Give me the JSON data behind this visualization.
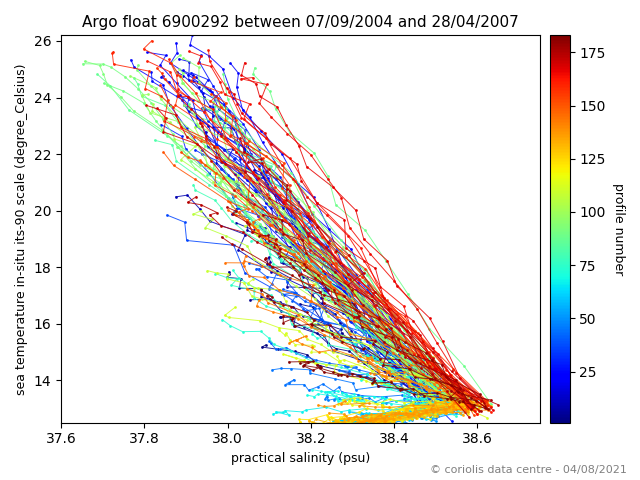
{
  "title": "Argo float 6900292 between 07/09/2004 and 28/04/2007",
  "xlabel": "practical salinity (psu)",
  "ylabel": "sea temperature in-situ its-90 scale (degree_Celsius)",
  "xlim": [
    37.6,
    38.75
  ],
  "ylim": [
    12.5,
    26.2
  ],
  "xticks": [
    37.6,
    37.8,
    38.0,
    38.2,
    38.4,
    38.6
  ],
  "yticks": [
    14,
    16,
    18,
    20,
    22,
    24,
    26
  ],
  "colorbar_label": "profile number",
  "colorbar_ticks": [
    25,
    50,
    75,
    100,
    125,
    150,
    175
  ],
  "n_profiles": 183,
  "cmap": "jet",
  "copyright": "© coriolis data centre - 04/08/2021",
  "title_fontsize": 11,
  "label_fontsize": 9,
  "copyright_fontsize": 8,
  "figsize": [
    6.4,
    4.8
  ],
  "dpi": 100
}
